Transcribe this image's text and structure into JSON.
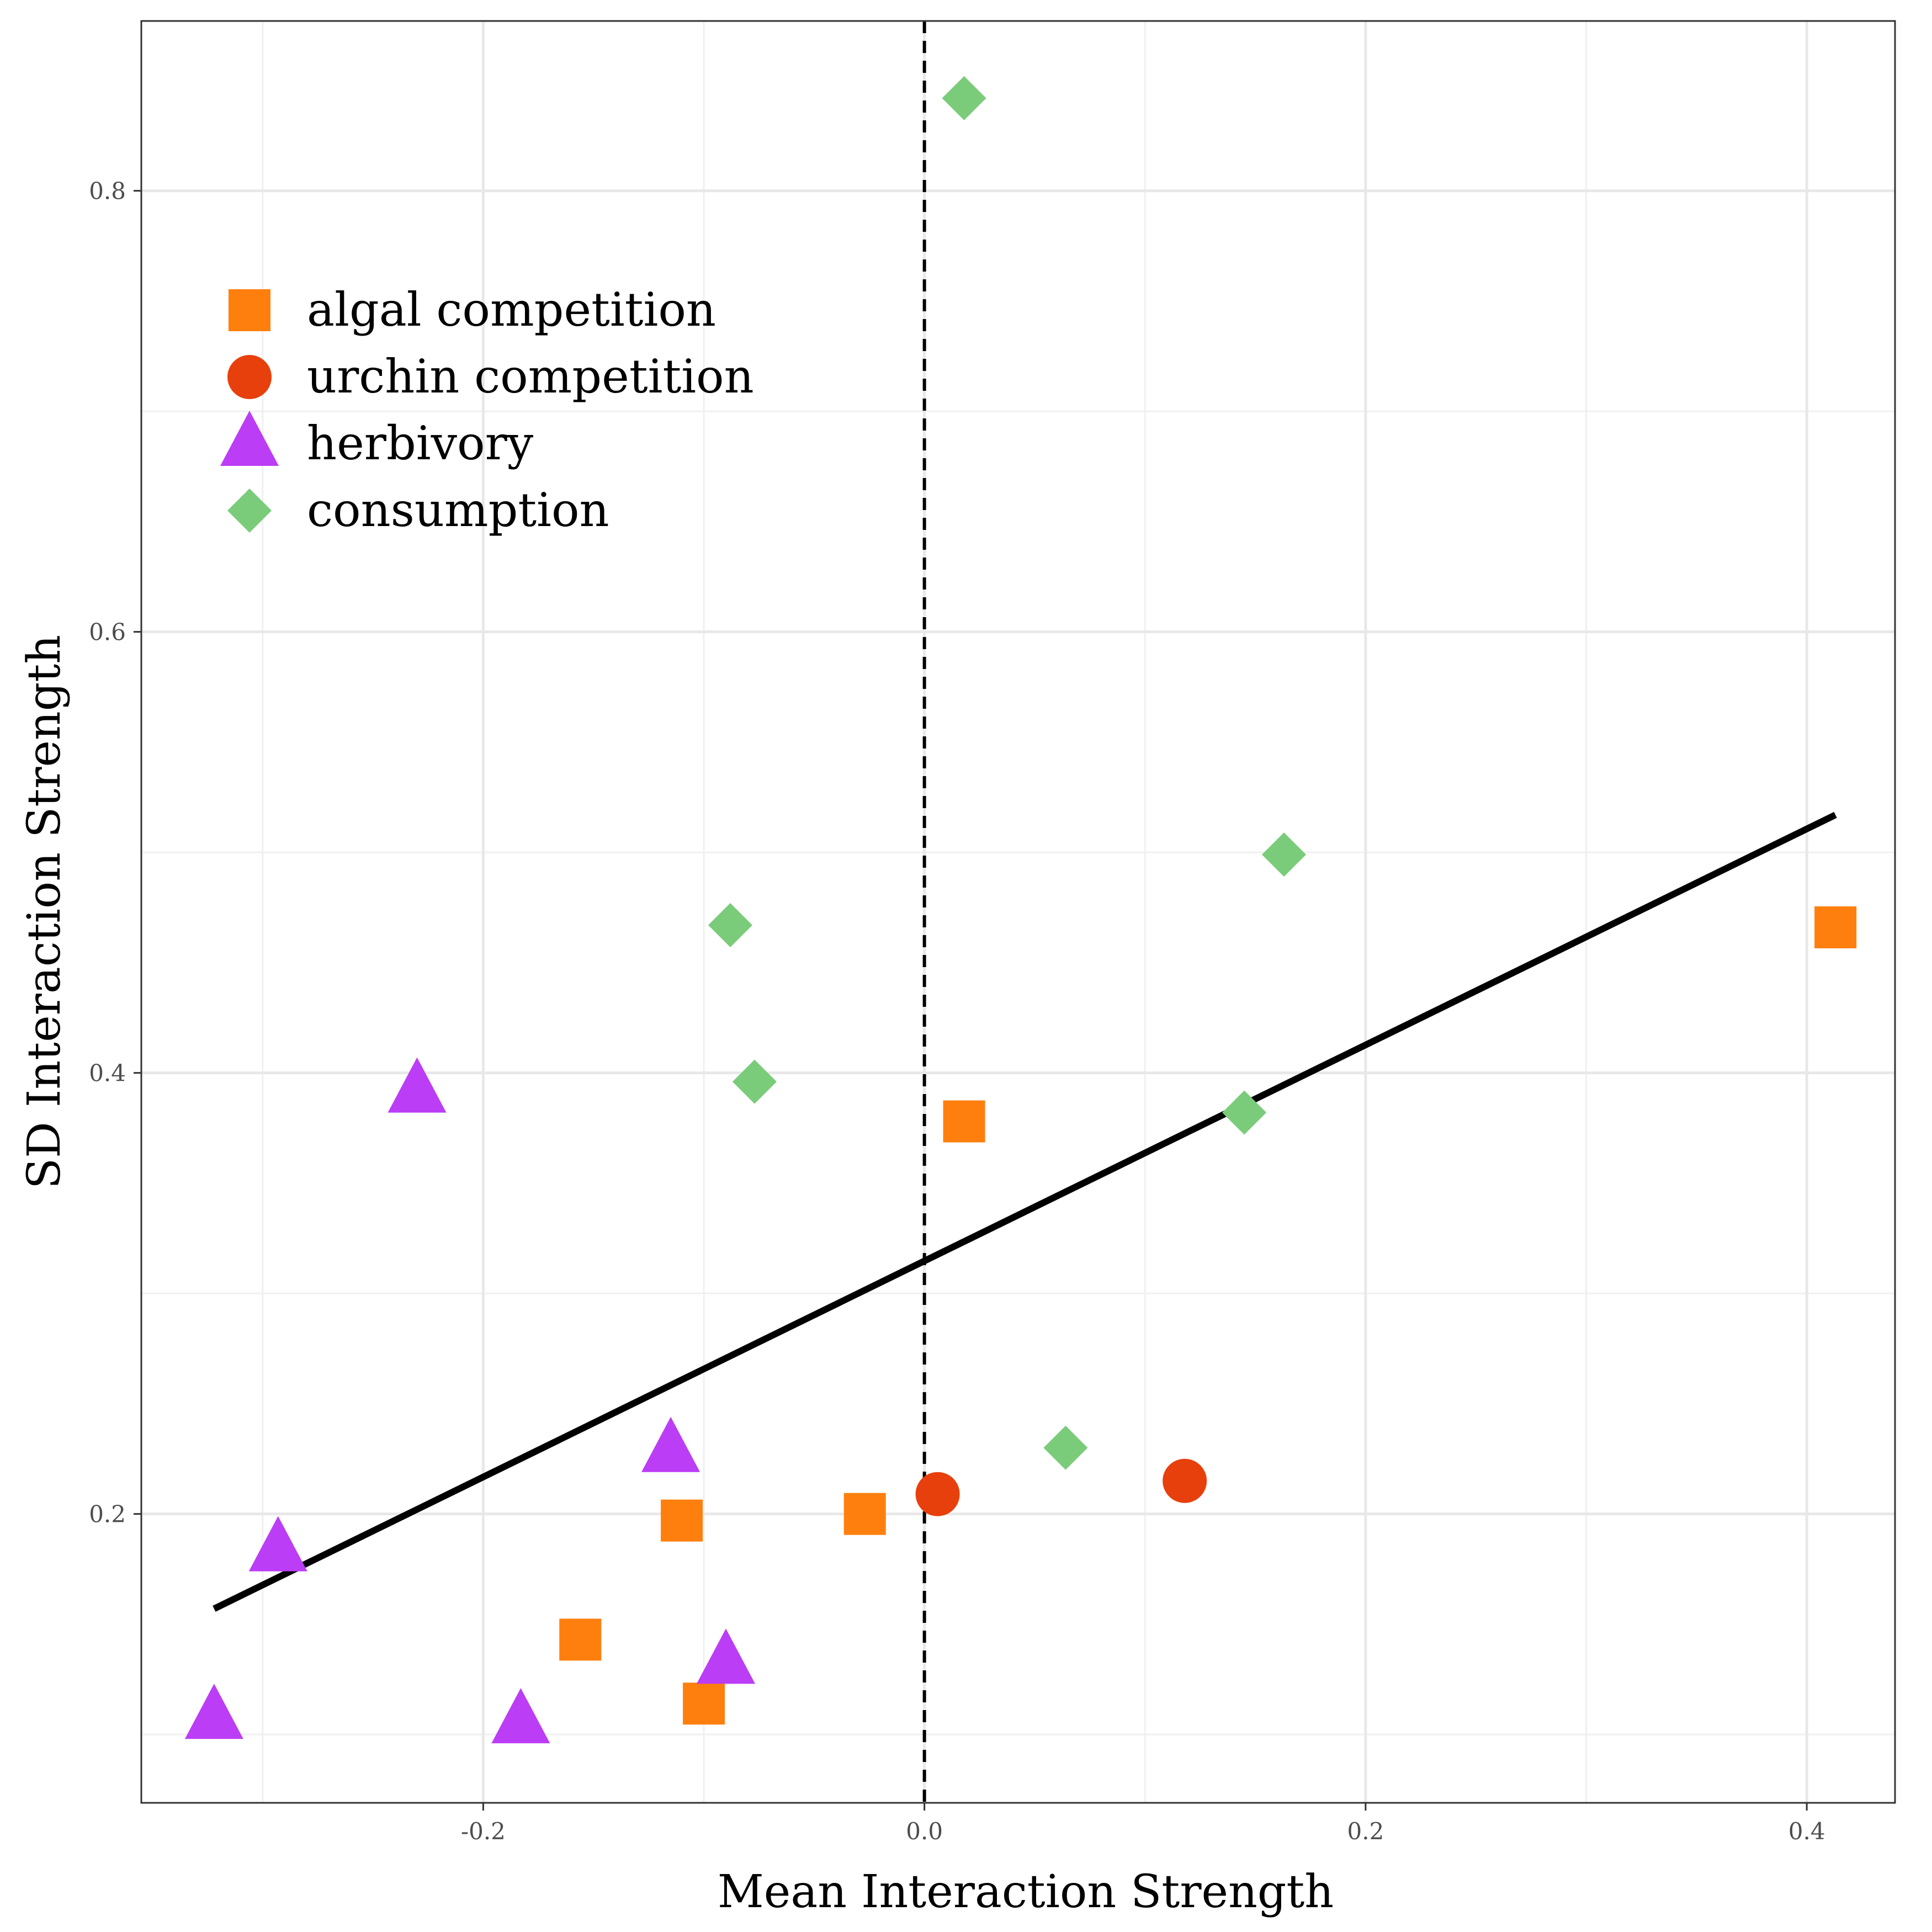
{
  "chart_data": {
    "type": "scatter",
    "xlabel": "Mean Interaction Strength",
    "ylabel": "SD Interaction Strength",
    "xlim": [
      -0.355,
      0.44
    ],
    "ylim": [
      0.069,
      0.877
    ],
    "x_ticks": [
      {
        "value": -0.2,
        "label": "-0.2"
      },
      {
        "value": 0.0,
        "label": "0.0"
      },
      {
        "value": 0.2,
        "label": "0.2"
      },
      {
        "value": 0.4,
        "label": "0.4"
      }
    ],
    "y_ticks": [
      {
        "value": 0.2,
        "label": "0.2"
      },
      {
        "value": 0.4,
        "label": "0.4"
      },
      {
        "value": 0.6,
        "label": "0.6"
      },
      {
        "value": 0.8,
        "label": "0.8"
      }
    ],
    "x_minor_grid": [
      -0.3,
      -0.1,
      0.1,
      0.3
    ],
    "y_minor_grid": [
      0.1,
      0.3,
      0.5,
      0.7
    ],
    "grid": true,
    "legend_position": "top-left",
    "reference_line": {
      "type": "vertical",
      "x": 0.0,
      "style": "dashed",
      "color": "#000000"
    },
    "fit_line": {
      "x1": -0.322,
      "y1": 0.157,
      "x2": 0.413,
      "y2": 0.517,
      "color": "#000000"
    },
    "series": [
      {
        "name": "algal competition",
        "shape": "square",
        "color": "#FF7F0E",
        "points": [
          {
            "x": 0.413,
            "y": 0.466
          },
          {
            "x": 0.018,
            "y": 0.378
          },
          {
            "x": -0.11,
            "y": 0.197
          },
          {
            "x": -0.027,
            "y": 0.2
          },
          {
            "x": -0.156,
            "y": 0.143
          },
          {
            "x": -0.1,
            "y": 0.114
          }
        ]
      },
      {
        "name": "urchin competition",
        "shape": "circle",
        "color": "#E8400C",
        "points": [
          {
            "x": 0.006,
            "y": 0.209
          },
          {
            "x": 0.118,
            "y": 0.215
          }
        ]
      },
      {
        "name": "herbivory",
        "shape": "triangle",
        "color": "#BB3DF5",
        "points": [
          {
            "x": -0.23,
            "y": 0.392
          },
          {
            "x": -0.115,
            "y": 0.229
          },
          {
            "x": -0.293,
            "y": 0.184
          },
          {
            "x": -0.09,
            "y": 0.133
          },
          {
            "x": -0.183,
            "y": 0.106
          },
          {
            "x": -0.322,
            "y": 0.108
          }
        ]
      },
      {
        "name": "consumption",
        "shape": "diamond",
        "color": "#7ACC7A",
        "points": [
          {
            "x": 0.018,
            "y": 0.842
          },
          {
            "x": 0.163,
            "y": 0.499
          },
          {
            "x": -0.088,
            "y": 0.467
          },
          {
            "x": -0.077,
            "y": 0.396
          },
          {
            "x": 0.145,
            "y": 0.382
          },
          {
            "x": 0.064,
            "y": 0.23
          }
        ]
      }
    ]
  }
}
